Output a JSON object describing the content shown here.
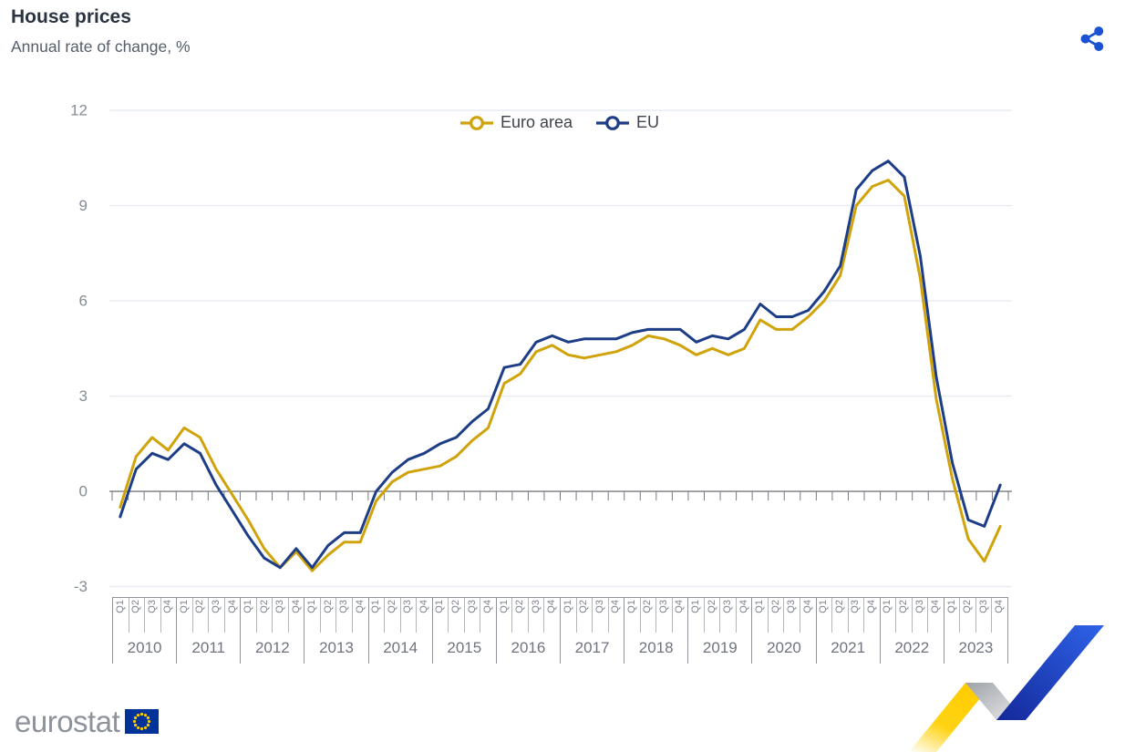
{
  "header": {
    "title": "House prices",
    "subtitle": "Annual rate of change, %",
    "share_icon": "share-icon",
    "share_color": "#1a52d3"
  },
  "footer": {
    "logo_text": "eurostat",
    "logo_flag_icon": "eu-flag-icon",
    "flag_blue": "#003399",
    "flag_star_yellow": "#ffcc00",
    "logo_text_color": "#8d929b"
  },
  "decoration": {
    "name": "eurostat-ribbon",
    "colors": {
      "yellow": "#ffcc00",
      "gray": "#c7c9cd",
      "blue": "#2456e0"
    }
  },
  "chart_data": {
    "type": "line",
    "title": "House prices",
    "subtitle": "Annual rate of change, %",
    "x_unit": "quarter",
    "years": [
      2010,
      2011,
      2012,
      2013,
      2014,
      2015,
      2016,
      2017,
      2018,
      2019,
      2020,
      2021,
      2022,
      2023
    ],
    "quarter_labels": [
      "Q1",
      "Q2",
      "Q3",
      "Q4"
    ],
    "ylim": [
      -3,
      12
    ],
    "yticks": [
      12,
      9,
      6,
      3,
      0,
      -3
    ],
    "grid": true,
    "legend_position": "top-center",
    "series": [
      {
        "name": "Euro area",
        "color": "#d0a30a",
        "values": [
          -0.5,
          1.1,
          1.7,
          1.3,
          2.0,
          1.7,
          0.7,
          -0.1,
          -0.9,
          -1.8,
          -2.4,
          -1.9,
          -2.5,
          -2.0,
          -1.6,
          -1.6,
          -0.3,
          0.3,
          0.6,
          0.7,
          0.8,
          1.1,
          1.6,
          2.0,
          3.4,
          3.7,
          4.4,
          4.6,
          4.3,
          4.2,
          4.3,
          4.4,
          4.6,
          4.9,
          4.8,
          4.6,
          4.3,
          4.5,
          4.3,
          4.5,
          5.4,
          5.1,
          5.1,
          5.5,
          6.0,
          6.8,
          9.0,
          9.6,
          9.8,
          9.3,
          6.7,
          2.9,
          0.4,
          -1.5,
          -2.2,
          -1.1
        ]
      },
      {
        "name": "EU",
        "color": "#1d3e87",
        "values": [
          -0.8,
          0.7,
          1.2,
          1.0,
          1.5,
          1.2,
          0.2,
          -0.6,
          -1.4,
          -2.1,
          -2.4,
          -1.8,
          -2.4,
          -1.7,
          -1.3,
          -1.3,
          0.0,
          0.6,
          1.0,
          1.2,
          1.5,
          1.7,
          2.2,
          2.6,
          3.9,
          4.0,
          4.7,
          4.9,
          4.7,
          4.8,
          4.8,
          4.8,
          5.0,
          5.1,
          5.1,
          5.1,
          4.7,
          4.9,
          4.8,
          5.1,
          5.9,
          5.5,
          5.5,
          5.7,
          6.3,
          7.1,
          9.5,
          10.1,
          10.4,
          9.9,
          7.4,
          3.6,
          0.9,
          -0.9,
          -1.1,
          0.2
        ]
      }
    ],
    "colors": {
      "grid": "#e7ebf2",
      "zero_line": "#76797f",
      "y_tick_labels": "#878c95",
      "x_tick_labels": "#7d828b",
      "year_labels": "#6f747e",
      "axis_lines": "#8f939a"
    }
  }
}
